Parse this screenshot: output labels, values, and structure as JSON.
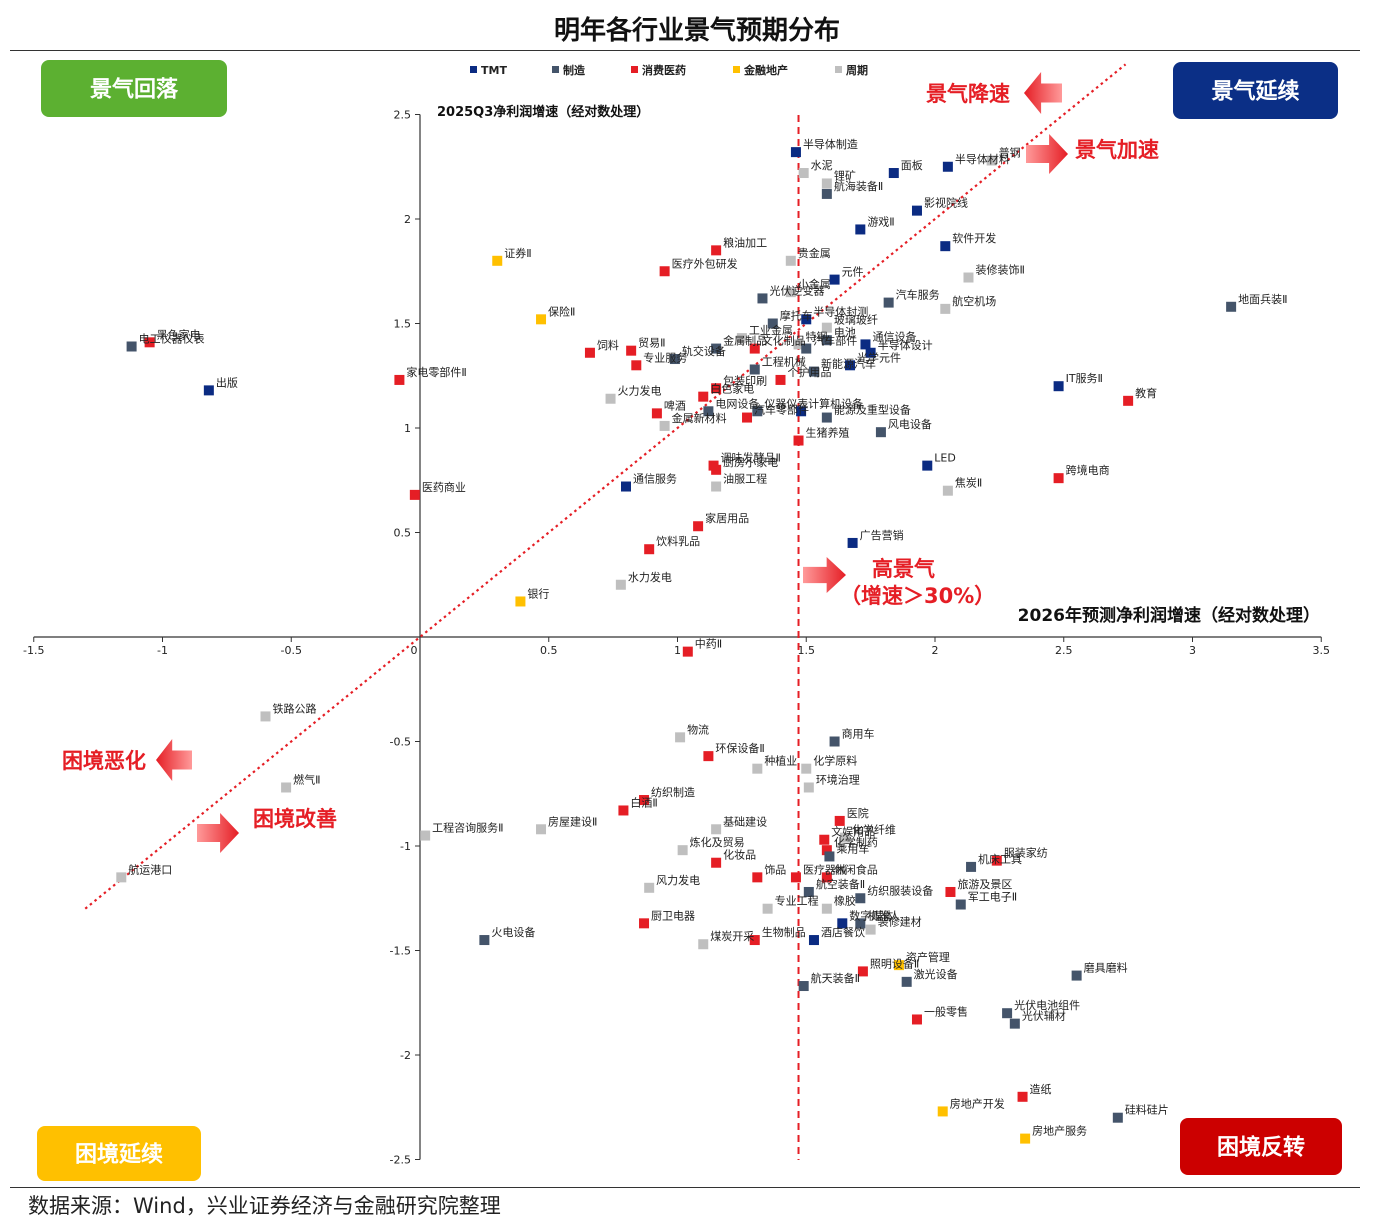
{
  "chart_data": {
    "type": "scatter",
    "title": "明年各行业景气预期分布",
    "xlabel": "2026年预测净利润增速（经对数处理）",
    "ylabel": "2025Q3净利润增速（经对数处理）",
    "xlim": [
      -1.5,
      3.5
    ],
    "ylim": [
      -2.5,
      2.5
    ],
    "x_ticks": [
      "-1.5",
      "-1",
      "-0.5",
      "0",
      "0.5",
      "1",
      "1.5",
      "2",
      "2.5",
      "3",
      "3.5"
    ],
    "y_ticks": [
      "2.5",
      "2",
      "1.5",
      "1",
      "0.5",
      "0",
      "-0.5",
      "-1",
      "-1.5",
      "-2",
      "-2.5"
    ],
    "legend": [
      {
        "key": "tmt",
        "name": "TMT",
        "color": "#0b2b82"
      },
      {
        "key": "mfg",
        "name": "制造",
        "color": "#44546a"
      },
      {
        "key": "con",
        "name": "消费医药",
        "color": "#e51e25"
      },
      {
        "key": "fin",
        "name": "金融地产",
        "color": "#ffc000"
      },
      {
        "key": "cyc",
        "name": "周期",
        "color": "#bfbfbf"
      }
    ],
    "legend_placement": "top",
    "grid": false,
    "threshold_x": 1.47,
    "diagonal": {
      "from": [
        -1.3,
        -1.3
      ],
      "to": [
        2.74,
        2.74
      ]
    },
    "quadrants": [
      {
        "key": "q1",
        "label": "景气回落",
        "color": "#5cb031"
      },
      {
        "key": "q2",
        "label": "景气延续",
        "color": "#0b2f86"
      },
      {
        "key": "q3",
        "label": "困境延续",
        "color": "#ffc000"
      },
      {
        "key": "q4",
        "label": "困境反转",
        "color": "#cc0000"
      }
    ],
    "annotations": {
      "slowdown": "景气降速",
      "accelerate": "景气加速",
      "high_1": "高景气",
      "high_2": "（增速＞30%）",
      "worsen": "困境恶化",
      "improve": "困境改善"
    },
    "points": [
      {
        "name": "半导体制造",
        "x": 1.46,
        "y": 2.32,
        "cat": "tmt"
      },
      {
        "name": "水泥",
        "x": 1.49,
        "y": 2.22,
        "cat": "cyc"
      },
      {
        "name": "锂矿",
        "x": 1.58,
        "y": 2.17,
        "cat": "cyc"
      },
      {
        "name": "航海装备Ⅱ",
        "x": 1.58,
        "y": 2.12,
        "cat": "mfg"
      },
      {
        "name": "面板",
        "x": 1.84,
        "y": 2.22,
        "cat": "tmt"
      },
      {
        "name": "半导体材料",
        "x": 2.05,
        "y": 2.25,
        "cat": "tmt"
      },
      {
        "name": "普钢",
        "x": 2.22,
        "y": 2.28,
        "cat": "cyc"
      },
      {
        "name": "影视院线",
        "x": 1.93,
        "y": 2.04,
        "cat": "tmt"
      },
      {
        "name": "游戏Ⅱ",
        "x": 1.71,
        "y": 1.95,
        "cat": "tmt"
      },
      {
        "name": "粮油加工",
        "x": 1.15,
        "y": 1.85,
        "cat": "con"
      },
      {
        "name": "贵金属",
        "x": 1.44,
        "y": 1.8,
        "cat": "cyc"
      },
      {
        "name": "证券Ⅱ",
        "x": 0.3,
        "y": 1.8,
        "cat": "fin"
      },
      {
        "name": "医疗外包研发",
        "x": 0.95,
        "y": 1.75,
        "cat": "con"
      },
      {
        "name": "元件",
        "x": 1.61,
        "y": 1.71,
        "cat": "tmt"
      },
      {
        "name": "软件开发",
        "x": 2.04,
        "y": 1.87,
        "cat": "tmt"
      },
      {
        "name": "装修装饰Ⅱ",
        "x": 2.13,
        "y": 1.72,
        "cat": "cyc"
      },
      {
        "name": "地面兵装Ⅱ",
        "x": 3.15,
        "y": 1.58,
        "cat": "mfg"
      },
      {
        "name": "航空机场",
        "x": 2.04,
        "y": 1.57,
        "cat": "cyc"
      },
      {
        "name": "汽车服务",
        "x": 1.82,
        "y": 1.6,
        "cat": "mfg"
      },
      {
        "name": "光伏逆变器",
        "x": 1.33,
        "y": 1.62,
        "cat": "mfg"
      },
      {
        "name": "小金属",
        "x": 1.44,
        "y": 1.65,
        "cat": "cyc"
      },
      {
        "name": "保险Ⅱ",
        "x": 0.47,
        "y": 1.52,
        "cat": "fin"
      },
      {
        "name": "半导体封测",
        "x": 1.5,
        "y": 1.52,
        "cat": "tmt"
      },
      {
        "name": "摩托车",
        "x": 1.37,
        "y": 1.5,
        "cat": "mfg"
      },
      {
        "name": "玻璃玻纤",
        "x": 1.58,
        "y": 1.48,
        "cat": "cyc"
      },
      {
        "name": "工业金属",
        "x": 1.25,
        "y": 1.43,
        "cat": "cyc"
      },
      {
        "name": "电池",
        "x": 1.58,
        "y": 1.42,
        "cat": "mfg"
      },
      {
        "name": "通信设备",
        "x": 1.73,
        "y": 1.4,
        "cat": "tmt"
      },
      {
        "name": "贸易Ⅱ",
        "x": 0.82,
        "y": 1.37,
        "cat": "con"
      },
      {
        "name": "金属制品",
        "x": 1.15,
        "y": 1.38,
        "cat": "mfg"
      },
      {
        "name": "文化制品",
        "x": 1.3,
        "y": 1.38,
        "cat": "con"
      },
      {
        "name": "特钢",
        "x": 1.47,
        "y": 1.4,
        "cat": "cyc"
      },
      {
        "name": "汽车部件",
        "x": 1.5,
        "y": 1.38,
        "cat": "mfg"
      },
      {
        "name": "半导体设计",
        "x": 1.75,
        "y": 1.36,
        "cat": "tmt"
      },
      {
        "name": "饲料",
        "x": 0.66,
        "y": 1.36,
        "cat": "con"
      },
      {
        "name": "轨交设备",
        "x": 0.99,
        "y": 1.33,
        "cat": "mfg"
      },
      {
        "name": "专业服务",
        "x": 0.84,
        "y": 1.3,
        "cat": "con"
      },
      {
        "name": "工程机械",
        "x": 1.3,
        "y": 1.28,
        "cat": "mfg"
      },
      {
        "name": "个护用品",
        "x": 1.4,
        "y": 1.23,
        "cat": "con"
      },
      {
        "name": "光学元件",
        "x": 1.67,
        "y": 1.3,
        "cat": "tmt"
      },
      {
        "name": "新能源汽车",
        "x": 1.53,
        "y": 1.27,
        "cat": "mfg"
      },
      {
        "name": "包装印刷",
        "x": 1.15,
        "y": 1.19,
        "cat": "con"
      },
      {
        "name": "白色家电",
        "x": 1.1,
        "y": 1.15,
        "cat": "con"
      },
      {
        "name": "火力发电",
        "x": 0.74,
        "y": 1.14,
        "cat": "cyc"
      },
      {
        "name": "电网设备",
        "x": 1.12,
        "y": 1.08,
        "cat": "mfg"
      },
      {
        "name": "啤酒",
        "x": 0.92,
        "y": 1.07,
        "cat": "con"
      },
      {
        "name": "仪器仪表",
        "x": 1.31,
        "y": 1.08,
        "cat": "mfg"
      },
      {
        "name": "计算机设备",
        "x": 1.48,
        "y": 1.08,
        "cat": "tmt"
      },
      {
        "name": "汽车零部件",
        "x": 1.27,
        "y": 1.05,
        "cat": "con"
      },
      {
        "name": "能源及重型设备",
        "x": 1.58,
        "y": 1.05,
        "cat": "mfg"
      },
      {
        "name": "金属新材料",
        "x": 0.95,
        "y": 1.01,
        "cat": "cyc"
      },
      {
        "name": "风电设备",
        "x": 1.79,
        "y": 0.98,
        "cat": "mfg"
      },
      {
        "name": "生猪养殖",
        "x": 1.47,
        "y": 0.94,
        "cat": "con"
      },
      {
        "name": "黑色家电",
        "x": -1.05,
        "y": 1.41,
        "cat": "con"
      },
      {
        "name": "电工仪器仪表",
        "x": -1.12,
        "y": 1.39,
        "cat": "mfg"
      },
      {
        "name": "家电零部件Ⅱ",
        "x": -0.08,
        "y": 1.23,
        "cat": "con"
      },
      {
        "name": "出版",
        "x": -0.82,
        "y": 1.18,
        "cat": "tmt"
      },
      {
        "name": "IT服务Ⅱ",
        "x": 2.48,
        "y": 1.2,
        "cat": "tmt"
      },
      {
        "name": "教育",
        "x": 2.75,
        "y": 1.13,
        "cat": "con"
      },
      {
        "name": "厨房小家电",
        "x": 1.15,
        "y": 0.8,
        "cat": "con"
      },
      {
        "name": "调味发酵品Ⅱ",
        "x": 1.14,
        "y": 0.82,
        "cat": "con"
      },
      {
        "name": "LED",
        "x": 1.97,
        "y": 0.82,
        "cat": "tmt"
      },
      {
        "name": "通信服务",
        "x": 0.8,
        "y": 0.72,
        "cat": "tmt"
      },
      {
        "name": "油服工程",
        "x": 1.15,
        "y": 0.72,
        "cat": "cyc"
      },
      {
        "name": "医药商业",
        "x": -0.02,
        "y": 0.68,
        "cat": "con"
      },
      {
        "name": "焦炭Ⅱ",
        "x": 2.05,
        "y": 0.7,
        "cat": "cyc"
      },
      {
        "name": "跨境电商",
        "x": 2.48,
        "y": 0.76,
        "cat": "con"
      },
      {
        "name": "家居用品",
        "x": 1.08,
        "y": 0.53,
        "cat": "con"
      },
      {
        "name": "饮料乳品",
        "x": 0.89,
        "y": 0.42,
        "cat": "con"
      },
      {
        "name": "广告营销",
        "x": 1.68,
        "y": 0.45,
        "cat": "tmt"
      },
      {
        "name": "水力发电",
        "x": 0.78,
        "y": 0.25,
        "cat": "cyc"
      },
      {
        "name": "银行",
        "x": 0.39,
        "y": 0.17,
        "cat": "fin"
      },
      {
        "name": "中药Ⅱ",
        "x": 1.04,
        "y": -0.07,
        "cat": "con"
      },
      {
        "name": "铁路公路",
        "x": -0.6,
        "y": -0.38,
        "cat": "cyc"
      },
      {
        "name": "物流",
        "x": 1.01,
        "y": -0.48,
        "cat": "cyc"
      },
      {
        "name": "商用车",
        "x": 1.61,
        "y": -0.5,
        "cat": "mfg"
      },
      {
        "name": "环保设备Ⅱ",
        "x": 1.12,
        "y": -0.57,
        "cat": "con"
      },
      {
        "name": "种植业",
        "x": 1.31,
        "y": -0.63,
        "cat": "cyc"
      },
      {
        "name": "化学原料",
        "x": 1.5,
        "y": -0.63,
        "cat": "cyc"
      },
      {
        "name": "燃气Ⅱ",
        "x": -0.52,
        "y": -0.72,
        "cat": "cyc"
      },
      {
        "name": "环境治理",
        "x": 1.51,
        "y": -0.72,
        "cat": "cyc"
      },
      {
        "name": "纺织制造",
        "x": 0.87,
        "y": -0.78,
        "cat": "con"
      },
      {
        "name": "房屋建设Ⅱ",
        "x": 0.47,
        "y": -0.92,
        "cat": "cyc"
      },
      {
        "name": "白酒Ⅱ",
        "x": 0.79,
        "y": -0.83,
        "cat": "con"
      },
      {
        "name": "工程咨询服务Ⅱ",
        "x": 0.02,
        "y": -0.95,
        "cat": "cyc"
      },
      {
        "name": "基础建设",
        "x": 1.15,
        "y": -0.92,
        "cat": "cyc"
      },
      {
        "name": "医院",
        "x": 1.63,
        "y": -0.88,
        "cat": "con"
      },
      {
        "name": "文娱用品",
        "x": 1.57,
        "y": -0.97,
        "cat": "con"
      },
      {
        "name": "化学纤维",
        "x": 1.65,
        "y": -0.96,
        "cat": "cyc"
      },
      {
        "name": "炼化及贸易",
        "x": 1.02,
        "y": -1.02,
        "cat": "cyc"
      },
      {
        "name": "化学制药",
        "x": 1.58,
        "y": -1.02,
        "cat": "con"
      },
      {
        "name": "乘用车",
        "x": 1.59,
        "y": -1.05,
        "cat": "mfg"
      },
      {
        "name": "化妆品",
        "x": 1.15,
        "y": -1.08,
        "cat": "con"
      },
      {
        "name": "服装家纺",
        "x": 2.24,
        "y": -1.07,
        "cat": "con"
      },
      {
        "name": "机床工具",
        "x": 2.14,
        "y": -1.1,
        "cat": "mfg"
      },
      {
        "name": "航运港口",
        "x": -1.16,
        "y": -1.15,
        "cat": "cyc"
      },
      {
        "name": "风力发电",
        "x": 0.89,
        "y": -1.2,
        "cat": "cyc"
      },
      {
        "name": "饰品",
        "x": 1.31,
        "y": -1.15,
        "cat": "con"
      },
      {
        "name": "医疗器械",
        "x": 1.46,
        "y": -1.15,
        "cat": "con"
      },
      {
        "name": "休闲食品",
        "x": 1.58,
        "y": -1.15,
        "cat": "con"
      },
      {
        "name": "旅游及景区",
        "x": 2.06,
        "y": -1.22,
        "cat": "con"
      },
      {
        "name": "军工电子Ⅱ",
        "x": 2.1,
        "y": -1.28,
        "cat": "mfg"
      },
      {
        "name": "纺织服装设备",
        "x": 1.71,
        "y": -1.25,
        "cat": "mfg"
      },
      {
        "name": "专业工程",
        "x": 1.35,
        "y": -1.3,
        "cat": "cyc"
      },
      {
        "name": "航空装备Ⅱ",
        "x": 1.51,
        "y": -1.22,
        "cat": "mfg"
      },
      {
        "name": "橡胶",
        "x": 1.58,
        "y": -1.3,
        "cat": "cyc"
      },
      {
        "name": "机器人",
        "x": 1.71,
        "y": -1.37,
        "cat": "mfg"
      },
      {
        "name": "数字媒体",
        "x": 1.64,
        "y": -1.37,
        "cat": "tmt"
      },
      {
        "name": "装修建材",
        "x": 1.75,
        "y": -1.4,
        "cat": "cyc"
      },
      {
        "name": "火电设备",
        "x": 0.25,
        "y": -1.45,
        "cat": "mfg"
      },
      {
        "name": "厨卫电器",
        "x": 0.87,
        "y": -1.37,
        "cat": "con"
      },
      {
        "name": "煤炭开采",
        "x": 1.1,
        "y": -1.47,
        "cat": "cyc"
      },
      {
        "name": "生物制品",
        "x": 1.3,
        "y": -1.45,
        "cat": "con"
      },
      {
        "name": "酒店餐饮",
        "x": 1.53,
        "y": -1.45,
        "cat": "tmt"
      },
      {
        "name": "资产管理",
        "x": 1.86,
        "y": -1.57,
        "cat": "fin"
      },
      {
        "name": "照明设备Ⅱ",
        "x": 1.72,
        "y": -1.6,
        "cat": "con"
      },
      {
        "name": "磨具磨料",
        "x": 2.55,
        "y": -1.62,
        "cat": "mfg"
      },
      {
        "name": "激光设备",
        "x": 1.89,
        "y": -1.65,
        "cat": "mfg"
      },
      {
        "name": "航天装备Ⅱ",
        "x": 1.49,
        "y": -1.67,
        "cat": "mfg"
      },
      {
        "name": "光伏电池组件",
        "x": 2.28,
        "y": -1.8,
        "cat": "mfg"
      },
      {
        "name": "光伏辅材",
        "x": 2.31,
        "y": -1.85,
        "cat": "mfg"
      },
      {
        "name": "一般零售",
        "x": 1.93,
        "y": -1.83,
        "cat": "con"
      },
      {
        "name": "造纸",
        "x": 2.34,
        "y": -2.2,
        "cat": "con"
      },
      {
        "name": "硅料硅片",
        "x": 2.71,
        "y": -2.3,
        "cat": "mfg"
      },
      {
        "name": "房地产开发",
        "x": 2.03,
        "y": -2.27,
        "cat": "fin"
      },
      {
        "name": "房地产服务",
        "x": 2.35,
        "y": -2.4,
        "cat": "fin"
      }
    ]
  },
  "source_text": "数据来源：Wind，兴业证券经济与金融研究院整理"
}
